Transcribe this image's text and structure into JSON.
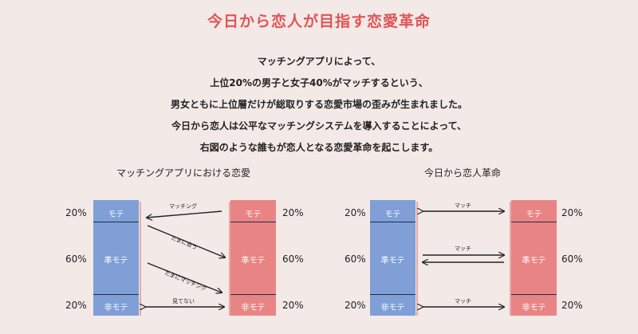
{
  "title": "今日から恋人が目指す恋愛革命",
  "intro": [
    "マッチングアプリによって、",
    "上位20%の男子と女子40%がマッチするという、",
    "男女ともに上位層だけが総取りする恋愛市場の歪みが生まれました。",
    "今日から恋人は公平なマッチングシステムを導入することによって、",
    "右図のような誰もが恋人となる恋愛革命を起こします。"
  ],
  "left_diagram": {
    "heading": "マッチングアプリにおける恋愛",
    "percent_top": "20%",
    "percent_mid": "60%",
    "percent_bottom": "20%",
    "segments": [
      "モテ",
      "準モテ",
      "非モテ"
    ],
    "arrows": [
      "マッチング",
      "たまに会う",
      "たまにマッチング",
      "見てない"
    ]
  },
  "right_diagram": {
    "heading": "今日から恋人革命",
    "percent_top": "20%",
    "percent_mid": "60%",
    "percent_bottom": "20%",
    "segments": [
      "モテ",
      "準モテ",
      "非モテ"
    ],
    "arrows": [
      "マッチ",
      "マッチ",
      "マッチ"
    ]
  },
  "colors": {
    "title": "#e05555",
    "blue": "#7f9fd6",
    "red": "#e98485",
    "arrow": "#222222"
  }
}
